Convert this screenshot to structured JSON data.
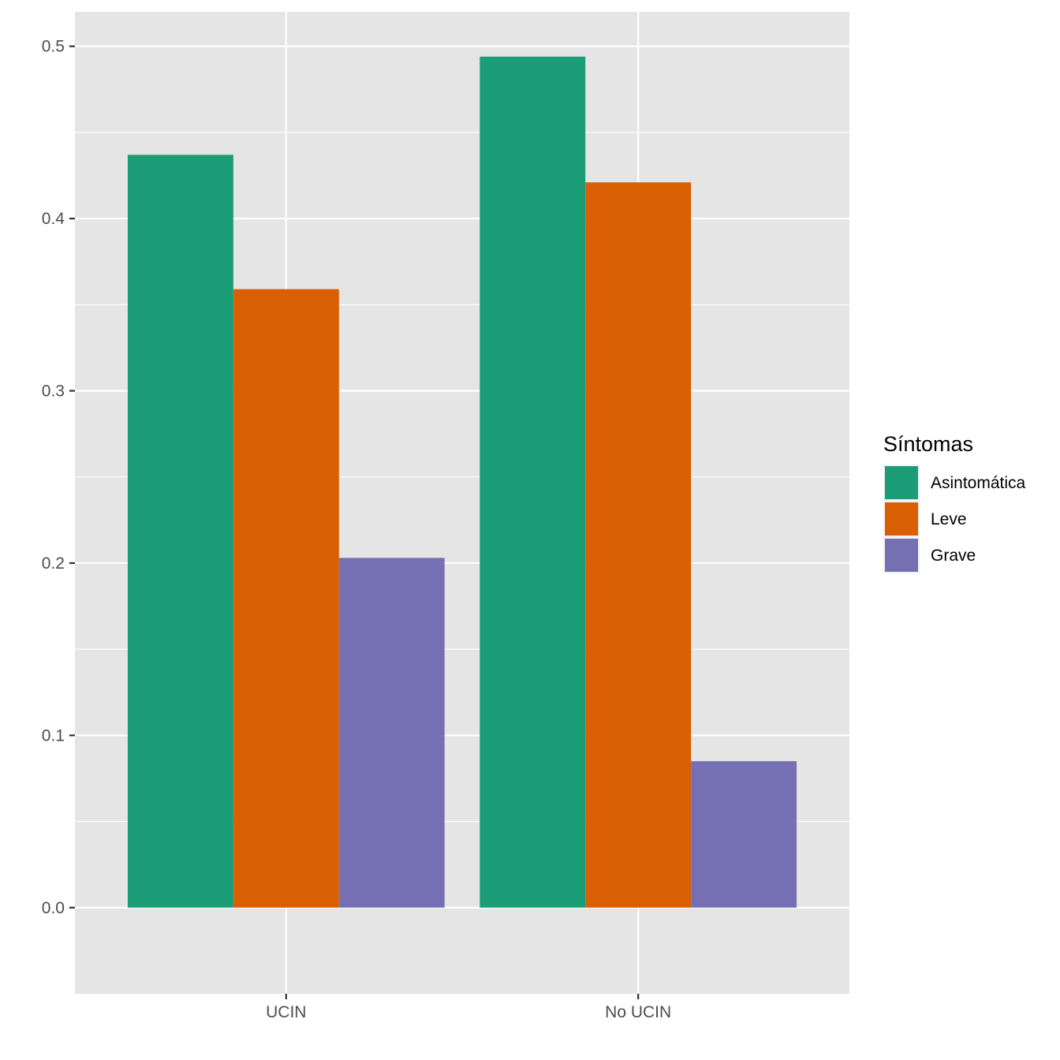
{
  "chart_data": {
    "type": "bar",
    "categories": [
      "UCIN",
      "No UCIN"
    ],
    "series": [
      {
        "name": "Asintomática",
        "color": "#1b9e77",
        "values": [
          0.437,
          0.494
        ]
      },
      {
        "name": "Leve",
        "color": "#d95f02",
        "values": [
          0.359,
          0.421
        ]
      },
      {
        "name": "Grave",
        "color": "#7570b3",
        "values": [
          0.203,
          0.085
        ]
      }
    ],
    "legend_title": "Síntomas",
    "legend_position": "right",
    "ylim": [
      -0.05,
      0.52
    ],
    "yticks": [
      0.0,
      0.1,
      0.2,
      0.3,
      0.4,
      0.5
    ],
    "ytick_labels": [
      "0.0",
      "0.1",
      "0.2",
      "0.3",
      "0.4",
      "0.5"
    ],
    "grid": true,
    "panel_color": "#e5e5e5",
    "xlabel": "",
    "ylabel": ""
  }
}
